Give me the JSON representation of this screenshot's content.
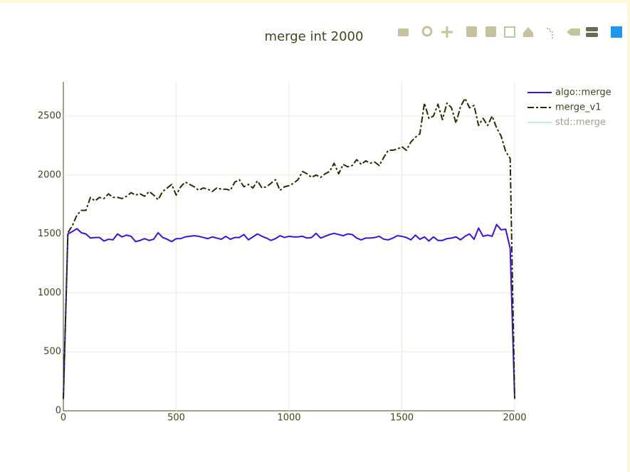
{
  "chart_data": {
    "type": "line",
    "title": "merge int 2000",
    "x": [
      0,
      20,
      40,
      60,
      80,
      100,
      120,
      140,
      160,
      180,
      200,
      220,
      240,
      260,
      280,
      300,
      320,
      340,
      360,
      380,
      400,
      420,
      440,
      460,
      480,
      500,
      520,
      540,
      560,
      580,
      600,
      620,
      640,
      660,
      680,
      700,
      720,
      740,
      760,
      780,
      800,
      820,
      840,
      860,
      880,
      900,
      920,
      940,
      960,
      980,
      1000,
      1020,
      1040,
      1060,
      1080,
      1100,
      1120,
      1140,
      1160,
      1180,
      1200,
      1220,
      1240,
      1260,
      1280,
      1300,
      1320,
      1340,
      1360,
      1380,
      1400,
      1420,
      1440,
      1460,
      1480,
      1500,
      1520,
      1540,
      1560,
      1580,
      1600,
      1620,
      1640,
      1660,
      1680,
      1700,
      1720,
      1740,
      1760,
      1780,
      1800,
      1820,
      1840,
      1860,
      1880,
      1900,
      1920,
      1940,
      1960,
      1980,
      2000
    ],
    "series": [
      {
        "name": "algo::merge",
        "color": "#3d0fe6",
        "dash": "solid",
        "values": [
          100,
          1500,
          1520,
          1545,
          1510,
          1500,
          1465,
          1470,
          1470,
          1440,
          1455,
          1450,
          1500,
          1475,
          1490,
          1480,
          1435,
          1445,
          1460,
          1445,
          1455,
          1510,
          1470,
          1455,
          1435,
          1460,
          1460,
          1475,
          1480,
          1485,
          1480,
          1470,
          1460,
          1475,
          1465,
          1455,
          1480,
          1455,
          1470,
          1470,
          1495,
          1450,
          1475,
          1500,
          1480,
          1465,
          1445,
          1460,
          1485,
          1470,
          1480,
          1475,
          1475,
          1480,
          1465,
          1470,
          1505,
          1465,
          1480,
          1495,
          1505,
          1495,
          1485,
          1500,
          1495,
          1465,
          1450,
          1465,
          1465,
          1470,
          1480,
          1455,
          1450,
          1465,
          1485,
          1480,
          1470,
          1450,
          1490,
          1455,
          1475,
          1440,
          1475,
          1445,
          1445,
          1460,
          1465,
          1475,
          1450,
          1480,
          1500,
          1455,
          1550,
          1480,
          1490,
          1480,
          1580,
          1535,
          1540,
          1380,
          100
        ]
      },
      {
        "name": "merge_v1",
        "color": "#2b2b00",
        "dash": "dashdot",
        "values": [
          100,
          1510,
          1570,
          1660,
          1700,
          1700,
          1810,
          1780,
          1810,
          1800,
          1840,
          1810,
          1810,
          1800,
          1820,
          1850,
          1830,
          1840,
          1820,
          1860,
          1830,
          1790,
          1860,
          1890,
          1920,
          1830,
          1900,
          1940,
          1920,
          1900,
          1870,
          1890,
          1880,
          1860,
          1890,
          1880,
          1880,
          1870,
          1940,
          1960,
          1900,
          1920,
          1890,
          1950,
          1890,
          1900,
          1930,
          1960,
          1870,
          1900,
          1910,
          1930,
          1960,
          2030,
          2010,
          1980,
          2000,
          1980,
          2010,
          2030,
          2100,
          2010,
          2090,
          2070,
          2080,
          2130,
          2090,
          2120,
          2100,
          2110,
          2080,
          2150,
          2210,
          2210,
          2220,
          2240,
          2210,
          2280,
          2320,
          2350,
          2610,
          2480,
          2500,
          2600,
          2470,
          2610,
          2570,
          2440,
          2580,
          2650,
          2570,
          2590,
          2420,
          2480,
          2420,
          2500,
          2400,
          2330,
          2200,
          2140,
          100
        ]
      },
      {
        "name": "std::merge",
        "color": "#7fdbc4",
        "visible": "legendonly"
      }
    ],
    "xlim": [
      0,
      2000
    ],
    "xticks": [
      0,
      500,
      1000,
      1500,
      2000
    ],
    "ylim": [
      0,
      2790
    ],
    "yticks": [
      0,
      500,
      1000,
      1500,
      2000,
      2500
    ],
    "grid": true,
    "legend": "right"
  }
}
